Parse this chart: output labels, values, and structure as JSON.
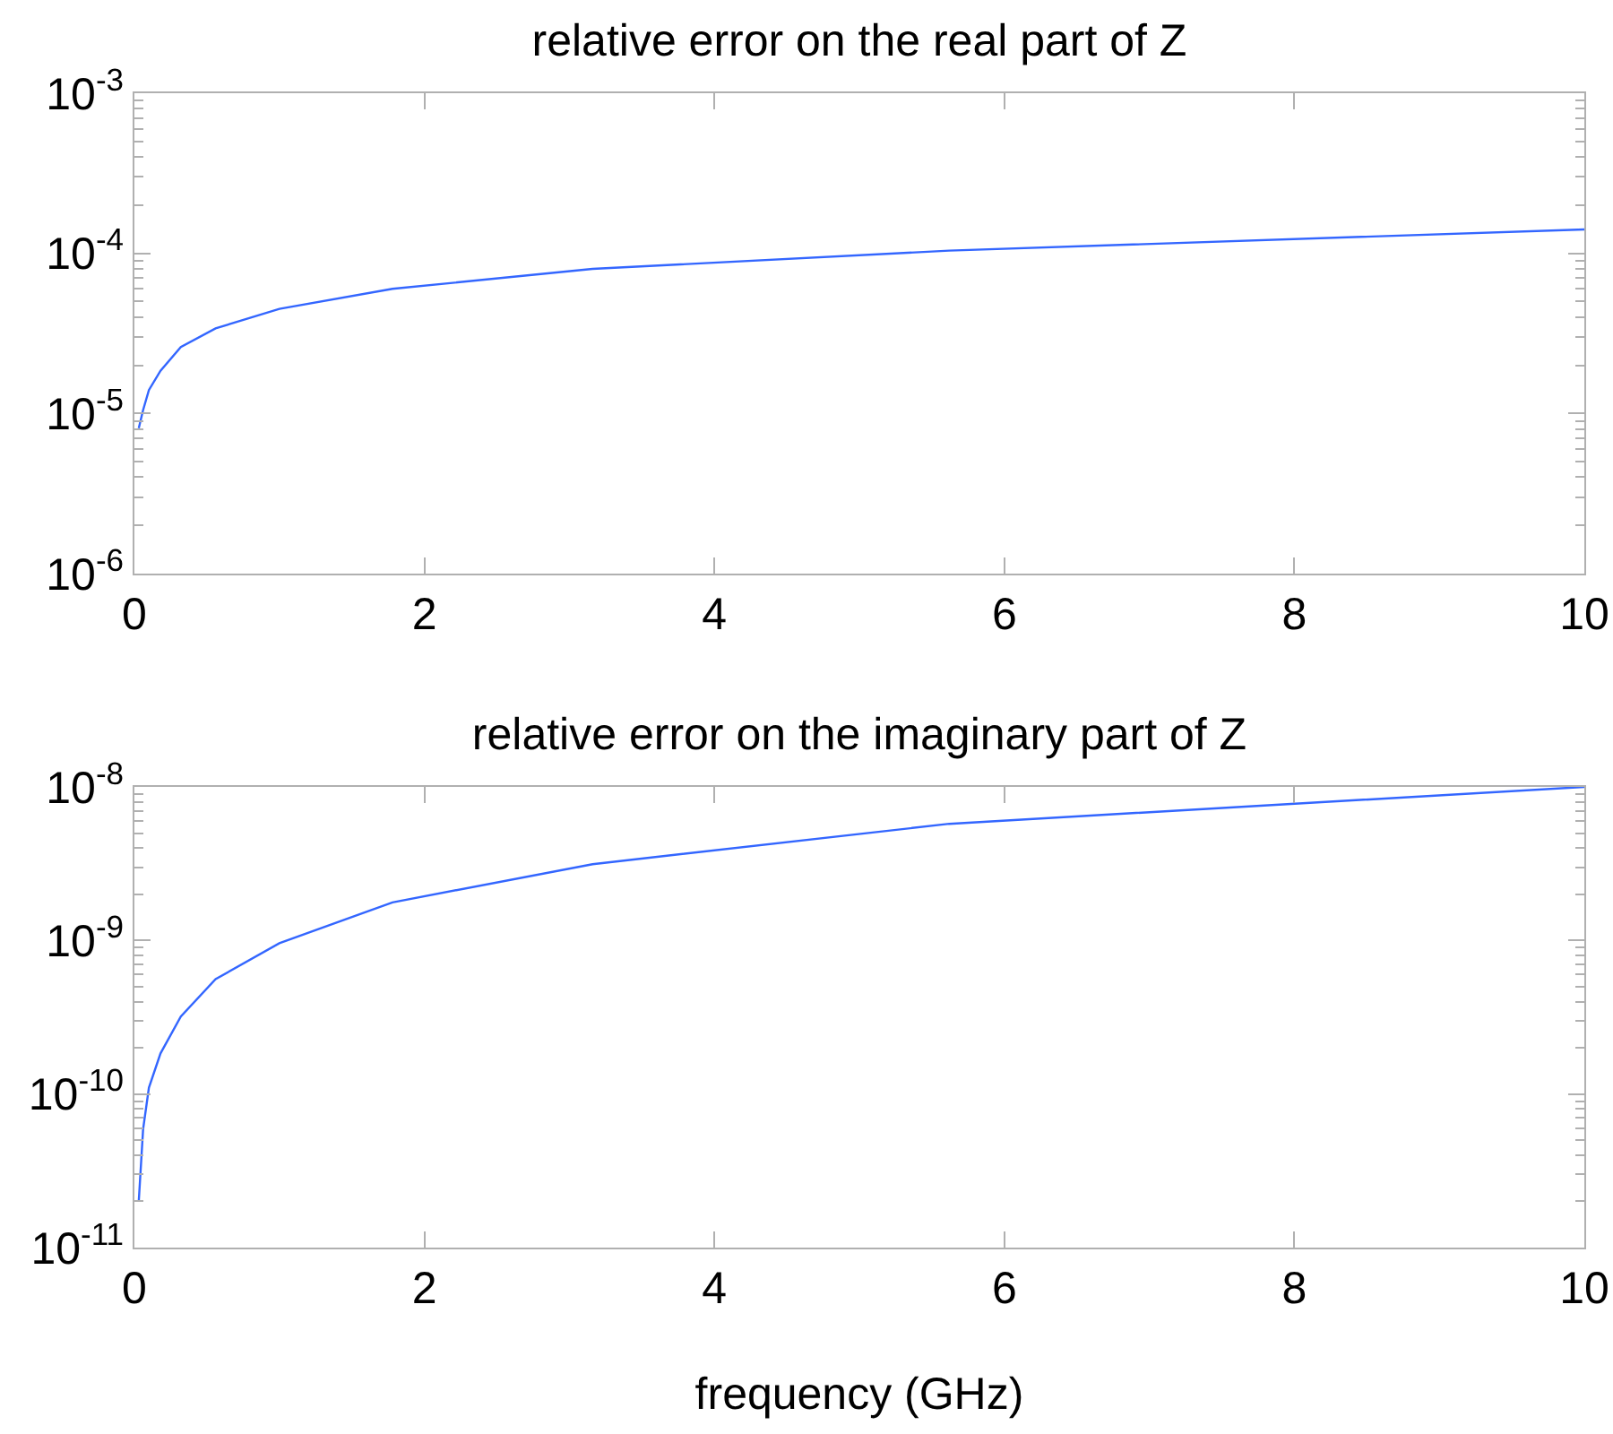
{
  "chart_data": [
    {
      "type": "line",
      "title": "relative error on the real part of Z",
      "x": [
        0.03,
        0.06,
        0.1,
        0.18,
        0.32,
        0.56,
        1,
        1.78,
        3.16,
        5.62,
        10
      ],
      "values": [
        8.1e-06,
        1.05e-05,
        1.4e-05,
        1.85e-05,
        2.6e-05,
        3.4e-05,
        4.5e-05,
        6e-05,
        8e-05,
        0.000104,
        0.000141
      ],
      "color": "#3366ff",
      "xlim": [
        0,
        10
      ],
      "xticks": [
        0,
        2,
        4,
        6,
        8,
        10
      ],
      "ylim": [
        1e-06,
        0.001
      ],
      "yticks": [
        {
          "value": 1e-06,
          "label": "10$^{-6}$"
        },
        {
          "value": 1e-05,
          "label": "10$^{-5}$"
        },
        {
          "value": 0.0001,
          "label": "10$^{-4}$"
        },
        {
          "value": 0.001,
          "label": "10$^{-3}$"
        }
      ],
      "log": true
    },
    {
      "type": "line",
      "title": "relative error on the imaginary part of Z",
      "xlabel": "frequency (GHz)",
      "x": [
        0.03,
        0.06,
        0.1,
        0.18,
        0.32,
        0.56,
        1,
        1.78,
        3.16,
        5.62,
        10
      ],
      "values": [
        2e-11,
        5.9e-11,
        1.1e-10,
        1.84e-10,
        3.2e-10,
        5.6e-10,
        9.6e-10,
        1.77e-09,
        3.14e-09,
        5.75e-09,
        1e-08
      ],
      "color": "#3366ff",
      "xlim": [
        0,
        10
      ],
      "xticks": [
        0,
        2,
        4,
        6,
        8,
        10
      ],
      "ylim": [
        1e-11,
        1e-08
      ],
      "yticks": [
        {
          "value": 1e-11,
          "label": "10$^{-11}$"
        },
        {
          "value": 1e-10,
          "label": "10$^{-10}$"
        },
        {
          "value": 1e-09,
          "label": "10$^{-9}$"
        },
        {
          "value": 1e-08,
          "label": "10$^{-8}$"
        }
      ],
      "log": true
    }
  ]
}
